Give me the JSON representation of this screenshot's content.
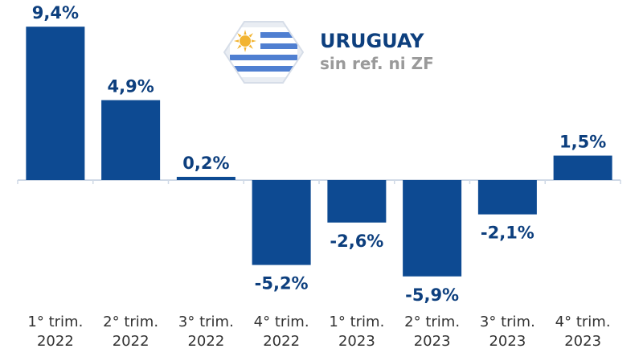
{
  "colors": {
    "bar": "#0d4a92",
    "label": "#0d3f7e",
    "subtitle": "#9a9a9a",
    "axis": "#cfd9e6"
  },
  "legend": {
    "title": "URUGUAY",
    "subtitle": "sin ref. ni ZF",
    "icon": "uruguay-flag-icon"
  },
  "chart_data": {
    "type": "bar",
    "categories": [
      [
        "1° trim.",
        "2022"
      ],
      [
        "2° trim.",
        "2022"
      ],
      [
        "3° trim.",
        "2022"
      ],
      [
        "4° trim.",
        "2022"
      ],
      [
        "1° trim.",
        "2023"
      ],
      [
        "2° trim.",
        "2023"
      ],
      [
        "3° trim.",
        "2023"
      ],
      [
        "4° trim.",
        "2023"
      ]
    ],
    "values": [
      9.4,
      4.9,
      0.2,
      -5.2,
      -2.6,
      -5.9,
      -2.1,
      1.5
    ],
    "labels": [
      "9,4%",
      "4,9%",
      "0,2%",
      "-5,2%",
      "-2,6%",
      "-5,9%",
      "-2,1%",
      "1,5%"
    ],
    "grid": false
  }
}
